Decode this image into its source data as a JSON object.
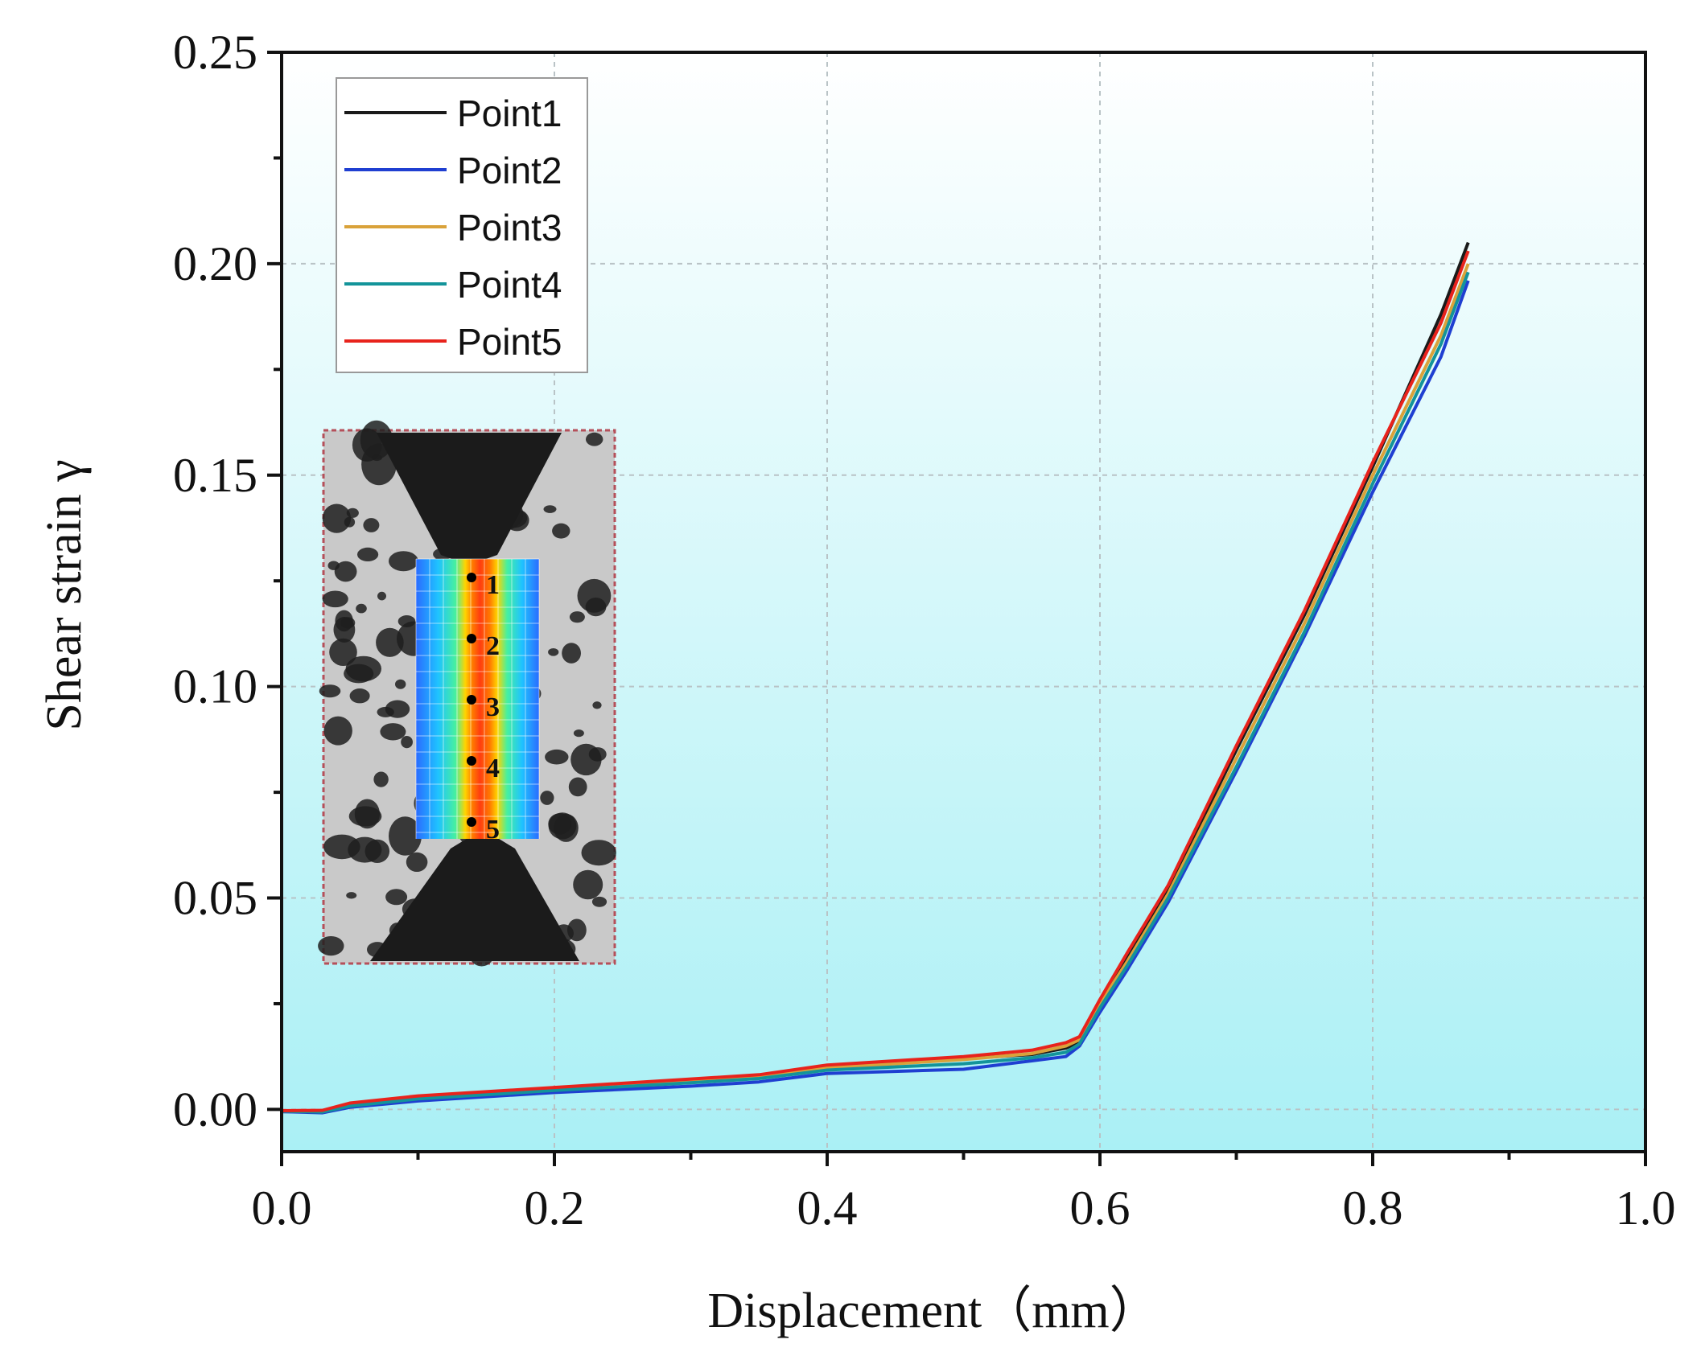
{
  "chart_data": {
    "type": "line",
    "title": "",
    "xlabel": "Displacement（mm）",
    "ylabel": "Shear strain γ",
    "xlim": [
      0.0,
      1.0
    ],
    "ylim": [
      -0.01,
      0.25
    ],
    "x_ticks": [
      0.0,
      0.2,
      0.4,
      0.6,
      0.8,
      1.0
    ],
    "x_tick_labels": [
      "0.0",
      "0.2",
      "0.4",
      "0.6",
      "0.8",
      "1.0"
    ],
    "y_ticks": [
      0.0,
      0.05,
      0.1,
      0.15,
      0.2,
      0.25
    ],
    "y_tick_labels": [
      "0.00",
      "0.05",
      "0.10",
      "0.15",
      "0.20",
      "0.25"
    ],
    "grid": true,
    "legend_position": "top-left",
    "series": [
      {
        "name": "Point1",
        "color": "#1a1a1a",
        "x": [
          0.0,
          0.03,
          0.05,
          0.1,
          0.2,
          0.3,
          0.35,
          0.4,
          0.5,
          0.55,
          0.575,
          0.585,
          0.6,
          0.62,
          0.65,
          0.7,
          0.75,
          0.8,
          0.85,
          0.87
        ],
        "y": [
          -0.0005,
          -0.0005,
          0.001,
          0.003,
          0.005,
          0.007,
          0.008,
          0.01,
          0.012,
          0.013,
          0.0145,
          0.016,
          0.025,
          0.036,
          0.052,
          0.085,
          0.117,
          0.152,
          0.188,
          0.205
        ]
      },
      {
        "name": "Point2",
        "color": "#1f3fd1",
        "x": [
          0.0,
          0.03,
          0.05,
          0.1,
          0.2,
          0.3,
          0.35,
          0.4,
          0.5,
          0.55,
          0.575,
          0.585,
          0.6,
          0.62,
          0.65,
          0.7,
          0.75,
          0.8,
          0.85,
          0.87
        ],
        "y": [
          -0.0005,
          -0.0008,
          0.0005,
          0.002,
          0.004,
          0.0055,
          0.0065,
          0.0085,
          0.0095,
          0.0115,
          0.0125,
          0.015,
          0.023,
          0.033,
          0.049,
          0.08,
          0.112,
          0.146,
          0.178,
          0.196
        ]
      },
      {
        "name": "Point3",
        "color": "#d9a23a",
        "x": [
          0.0,
          0.03,
          0.05,
          0.1,
          0.2,
          0.3,
          0.35,
          0.4,
          0.5,
          0.55,
          0.575,
          0.585,
          0.6,
          0.62,
          0.65,
          0.7,
          0.75,
          0.8,
          0.85,
          0.87
        ],
        "y": [
          -0.0003,
          -0.0003,
          0.0012,
          0.0028,
          0.0048,
          0.0068,
          0.0078,
          0.0098,
          0.0118,
          0.0132,
          0.015,
          0.0165,
          0.025,
          0.035,
          0.051,
          0.083,
          0.115,
          0.15,
          0.183,
          0.2
        ]
      },
      {
        "name": "Point4",
        "color": "#13949a",
        "x": [
          0.0,
          0.03,
          0.05,
          0.1,
          0.2,
          0.3,
          0.35,
          0.4,
          0.5,
          0.55,
          0.575,
          0.585,
          0.6,
          0.62,
          0.65,
          0.7,
          0.75,
          0.8,
          0.85,
          0.87
        ],
        "y": [
          -0.0004,
          -0.0006,
          0.0008,
          0.0025,
          0.0045,
          0.0063,
          0.0073,
          0.0093,
          0.0108,
          0.0122,
          0.0135,
          0.0155,
          0.024,
          0.034,
          0.05,
          0.081,
          0.113,
          0.148,
          0.181,
          0.198
        ]
      },
      {
        "name": "Point5",
        "color": "#e8231c",
        "x": [
          0.0,
          0.03,
          0.05,
          0.1,
          0.2,
          0.3,
          0.35,
          0.4,
          0.5,
          0.55,
          0.575,
          0.585,
          0.6,
          0.62,
          0.65,
          0.7,
          0.75,
          0.8,
          0.85,
          0.87
        ],
        "y": [
          -0.0003,
          -0.0002,
          0.0015,
          0.0032,
          0.0052,
          0.0072,
          0.0082,
          0.0105,
          0.0125,
          0.014,
          0.0158,
          0.0172,
          0.026,
          0.037,
          0.053,
          0.086,
          0.118,
          0.153,
          0.186,
          0.203
        ]
      }
    ],
    "inset": {
      "description_labels": [
        "1",
        "2",
        "3",
        "4",
        "5"
      ]
    }
  }
}
